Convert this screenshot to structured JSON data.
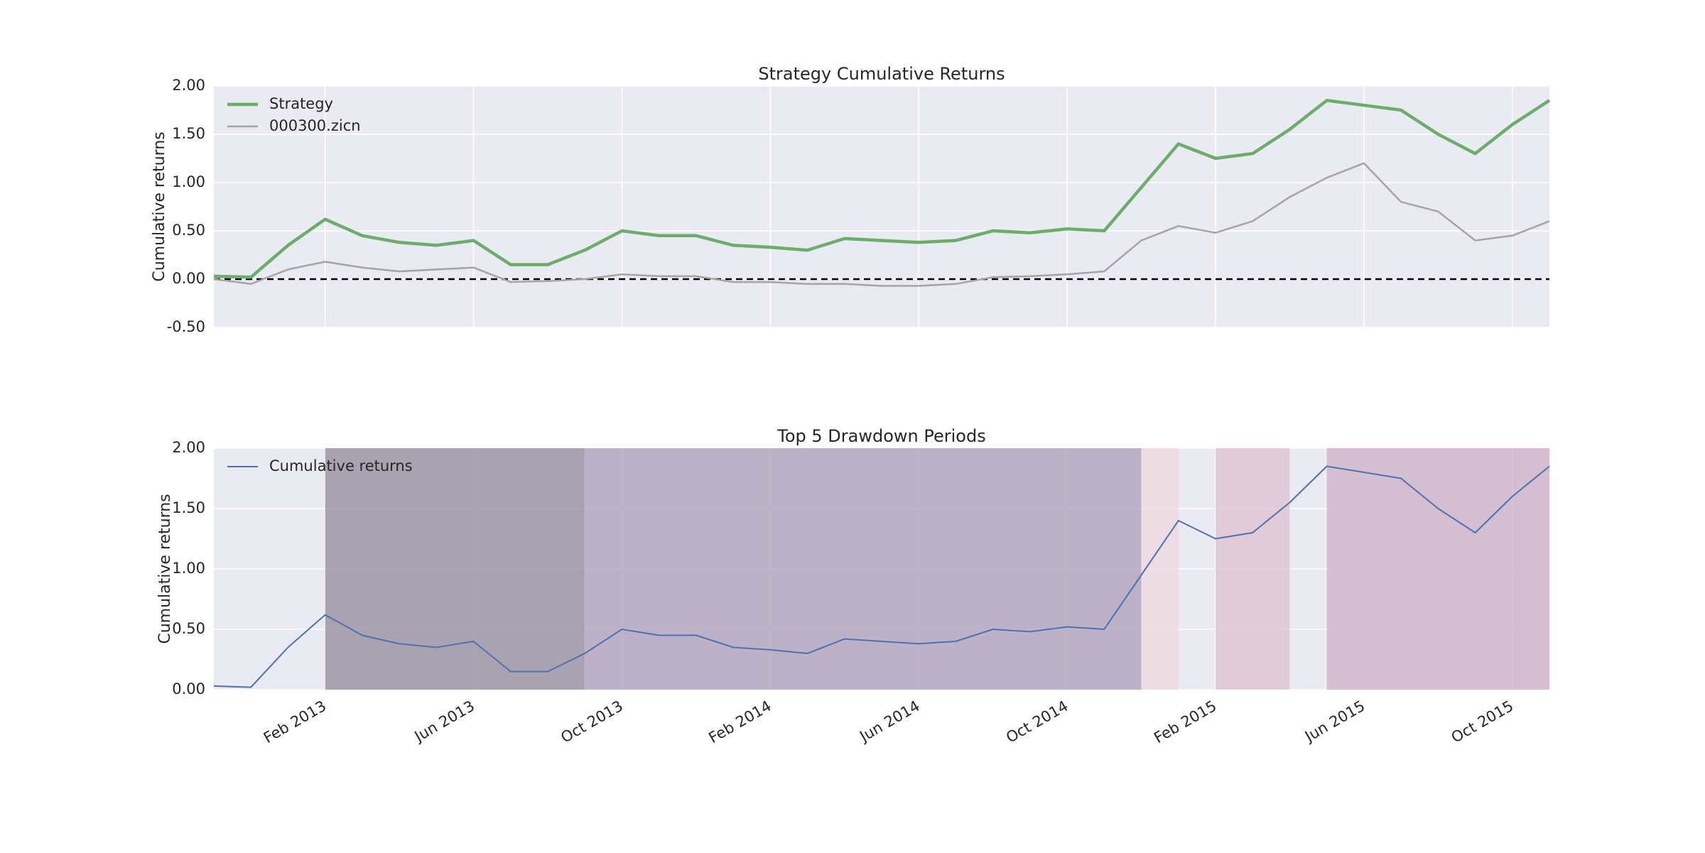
{
  "chart_data": [
    {
      "type": "line",
      "title": "Strategy Cumulative Returns",
      "ylabel": "Cumulative returns",
      "x": [
        "2012-11",
        "2012-12",
        "2013-01",
        "2013-02",
        "2013-03",
        "2013-04",
        "2013-05",
        "2013-06",
        "2013-07",
        "2013-08",
        "2013-09",
        "2013-10",
        "2013-11",
        "2013-12",
        "2014-01",
        "2014-02",
        "2014-03",
        "2014-04",
        "2014-05",
        "2014-06",
        "2014-07",
        "2014-08",
        "2014-09",
        "2014-10",
        "2014-11",
        "2014-12",
        "2015-01",
        "2015-02",
        "2015-03",
        "2015-04",
        "2015-05",
        "2015-06",
        "2015-07",
        "2015-08",
        "2015-09",
        "2015-10",
        "2015-11"
      ],
      "series": [
        {
          "name": "Strategy",
          "color": "#6aae6a",
          "width": 4.5,
          "values": [
            0.03,
            0.02,
            0.35,
            0.62,
            0.45,
            0.38,
            0.35,
            0.4,
            0.15,
            0.15,
            0.3,
            0.5,
            0.45,
            0.45,
            0.35,
            0.33,
            0.3,
            0.42,
            0.4,
            0.38,
            0.4,
            0.5,
            0.48,
            0.52,
            0.5,
            0.95,
            1.4,
            1.25,
            1.3,
            1.55,
            1.85,
            1.8,
            1.75,
            1.5,
            1.3,
            1.6,
            1.85
          ]
        },
        {
          "name": "000300.zicn",
          "color": "#a5a5a5",
          "width": 2.5,
          "values": [
            0.0,
            -0.05,
            0.1,
            0.18,
            0.12,
            0.08,
            0.1,
            0.12,
            -0.03,
            -0.02,
            0.0,
            0.05,
            0.03,
            0.03,
            -0.03,
            -0.03,
            -0.05,
            -0.05,
            -0.07,
            -0.07,
            -0.05,
            0.02,
            0.03,
            0.05,
            0.08,
            0.4,
            0.55,
            0.48,
            0.6,
            0.85,
            1.05,
            1.2,
            0.8,
            0.7,
            0.4,
            0.45,
            0.6
          ]
        }
      ],
      "xlim": [
        "2012-11",
        "2015-11"
      ],
      "xticks": [
        "2013-02",
        "2013-06",
        "2013-10",
        "2014-02",
        "2014-06",
        "2014-10",
        "2015-02",
        "2015-06",
        "2015-10"
      ],
      "ylim": [
        -0.5,
        2
      ],
      "yticks": [
        {
          "value": -0.5,
          "label": "-0.50"
        },
        {
          "value": 0,
          "label": "0.00"
        },
        {
          "value": 0.5,
          "label": "0.50"
        },
        {
          "value": 1,
          "label": "1.00"
        },
        {
          "value": 1.5,
          "label": "1.50"
        },
        {
          "value": 2,
          "label": "2.00"
        }
      ],
      "hline": 0,
      "grid": true,
      "legend": "upper-left"
    },
    {
      "type": "line",
      "title": "Top 5 Drawdown Periods",
      "ylabel": "Cumulative returns",
      "x": [
        "2012-11",
        "2012-12",
        "2013-01",
        "2013-02",
        "2013-03",
        "2013-04",
        "2013-05",
        "2013-06",
        "2013-07",
        "2013-08",
        "2013-09",
        "2013-10",
        "2013-11",
        "2013-12",
        "2014-01",
        "2014-02",
        "2014-03",
        "2014-04",
        "2014-05",
        "2014-06",
        "2014-07",
        "2014-08",
        "2014-09",
        "2014-10",
        "2014-11",
        "2014-12",
        "2015-01",
        "2015-02",
        "2015-03",
        "2015-04",
        "2015-05",
        "2015-06",
        "2015-07",
        "2015-08",
        "2015-09",
        "2015-10",
        "2015-11"
      ],
      "series": [
        {
          "name": "Cumulative returns",
          "color": "#4c72b0",
          "width": 2,
          "values": [
            0.03,
            0.02,
            0.35,
            0.62,
            0.45,
            0.38,
            0.35,
            0.4,
            0.15,
            0.15,
            0.3,
            0.5,
            0.45,
            0.45,
            0.35,
            0.33,
            0.3,
            0.42,
            0.4,
            0.38,
            0.4,
            0.5,
            0.48,
            0.52,
            0.5,
            0.95,
            1.4,
            1.25,
            1.3,
            1.55,
            1.85,
            1.8,
            1.75,
            1.5,
            1.3,
            1.6,
            1.85
          ]
        }
      ],
      "spans": [
        {
          "start": "2013-02",
          "end": "2013-09",
          "color": "#9e97a6"
        },
        {
          "start": "2013-09",
          "end": "2014-12",
          "color": "#b5a7bf"
        },
        {
          "start": "2014-12",
          "end": "2015-01",
          "color": "#eddae0"
        },
        {
          "start": "2015-02",
          "end": "2015-04",
          "color": "#dfc6d3"
        },
        {
          "start": "2015-05",
          "end": "2015-11",
          "color": "#d0b6cc"
        }
      ],
      "xlim": [
        "2012-11",
        "2015-11"
      ],
      "xticks": [
        {
          "value": "2013-02",
          "label": "Feb 2013"
        },
        {
          "value": "2013-06",
          "label": "Jun 2013"
        },
        {
          "value": "2013-10",
          "label": "Oct 2013"
        },
        {
          "value": "2014-02",
          "label": "Feb 2014"
        },
        {
          "value": "2014-06",
          "label": "Jun 2014"
        },
        {
          "value": "2014-10",
          "label": "Oct 2014"
        },
        {
          "value": "2015-02",
          "label": "Feb 2015"
        },
        {
          "value": "2015-06",
          "label": "Jun 2015"
        },
        {
          "value": "2015-10",
          "label": "Oct 2015"
        }
      ],
      "ylim": [
        0,
        2
      ],
      "yticks": [
        {
          "value": 0,
          "label": "0.00"
        },
        {
          "value": 0.5,
          "label": "0.50"
        },
        {
          "value": 1,
          "label": "1.00"
        },
        {
          "value": 1.5,
          "label": "1.50"
        },
        {
          "value": 2,
          "label": "2.00"
        }
      ],
      "grid": true,
      "legend": "upper-left"
    }
  ]
}
